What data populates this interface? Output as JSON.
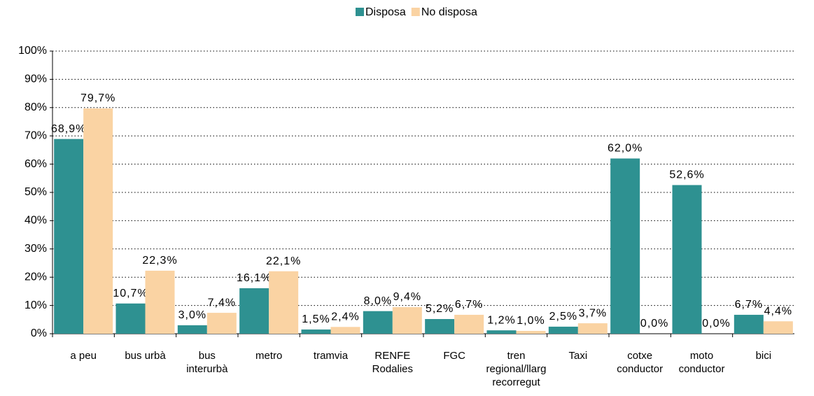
{
  "chart_data": {
    "type": "bar",
    "categories": [
      "a peu",
      "bus urbà",
      "bus\ninterurbà",
      "metro",
      "tramvia",
      "RENFE\nRodalies",
      "FGC",
      "tren\nregional/llarg\nrecorregut",
      "Taxi",
      "cotxe\nconductor",
      "moto\nconductor",
      "bici"
    ],
    "series": [
      {
        "name": "Disposa",
        "color": "#2e9191",
        "values": [
          68.9,
          10.7,
          3.0,
          16.1,
          1.5,
          8.0,
          5.2,
          1.2,
          2.5,
          62.0,
          52.6,
          6.7
        ],
        "value_labels": [
          "68,9%",
          "10,7%",
          "3,0%",
          "16,1%",
          "1,5%",
          "8,0%",
          "5,2%",
          "1,2%",
          "2,5%",
          "62,0%",
          "52,6%",
          "6,7%"
        ]
      },
      {
        "name": "No disposa",
        "color": "#fad3a3",
        "values": [
          79.7,
          22.3,
          7.4,
          22.1,
          2.4,
          9.4,
          6.7,
          1.0,
          3.7,
          0.0,
          0.0,
          4.4
        ],
        "value_labels": [
          "79,7%",
          "22,3%",
          "7,4%",
          "22,1%",
          "2,4%",
          "9,4%",
          "6,7%",
          "1,0%",
          "3,7%",
          "0,0%",
          "0,0%",
          "4,4%"
        ]
      }
    ],
    "ylim": [
      0,
      100
    ],
    "yticks": [
      {
        "value": 0,
        "label": "0%"
      },
      {
        "value": 10,
        "label": "10%"
      },
      {
        "value": 20,
        "label": "20%"
      },
      {
        "value": 30,
        "label": "30%"
      },
      {
        "value": 40,
        "label": "40%"
      },
      {
        "value": 50,
        "label": "50%"
      },
      {
        "value": 60,
        "label": "60%"
      },
      {
        "value": 70,
        "label": "70%"
      },
      {
        "value": 80,
        "label": "80%"
      },
      {
        "value": 90,
        "label": "90%"
      },
      {
        "value": 100,
        "label": "100%"
      }
    ],
    "grid": true,
    "legend": "top"
  }
}
